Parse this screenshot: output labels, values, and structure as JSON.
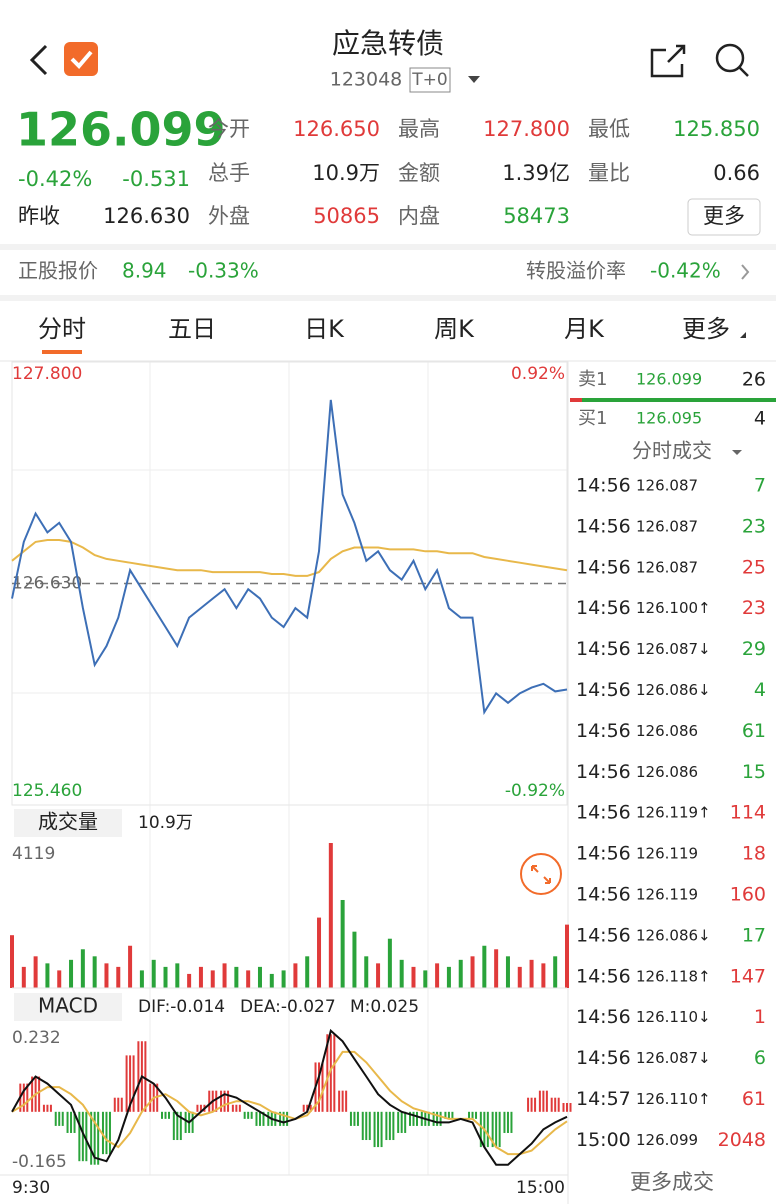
{
  "header": {
    "title": "应急转债",
    "code": "123048",
    "badge": "T+0"
  },
  "quote": {
    "price": "126.099",
    "change_pct": "-0.42%",
    "change": "-0.531",
    "prev_close_label": "昨收",
    "prev_close": "126.630",
    "fields": [
      {
        "label": "今开",
        "value": "126.650",
        "color": "red"
      },
      {
        "label": "最高",
        "value": "127.800",
        "color": "red"
      },
      {
        "label": "最低",
        "value": "125.850",
        "color": "green"
      },
      {
        "label": "总手",
        "value": "10.9万",
        "color": "black"
      },
      {
        "label": "金额",
        "value": "1.39亿",
        "color": "black"
      },
      {
        "label": "量比",
        "value": "0.66",
        "color": "black"
      },
      {
        "label": "外盘",
        "value": "50865",
        "color": "red"
      },
      {
        "label": "内盘",
        "value": "58473",
        "color": "green"
      }
    ],
    "more_button": "更多"
  },
  "stock_row": {
    "label": "正股报价",
    "price": "8.94",
    "change": "-0.33%",
    "premium_label": "转股溢价率",
    "premium": "-0.42%"
  },
  "tabs": [
    "分时",
    "五日",
    "日K",
    "周K",
    "月K",
    "更多"
  ],
  "intraday": {
    "ylim": [
      125.46,
      127.8
    ],
    "yticks": [
      {
        "value": 127.8,
        "label": "127.800"
      },
      {
        "value": 126.63,
        "label": "126.630"
      },
      {
        "value": 125.46,
        "label": "125.460"
      }
    ],
    "y2lim": [
      -0.92,
      0.92
    ],
    "y2ticks": [
      {
        "value": 0.92,
        "label": "0.92%"
      },
      {
        "value": -0.92,
        "label": "-0.92%"
      }
    ],
    "price": [
      126.55,
      126.85,
      127.0,
      126.9,
      126.95,
      126.85,
      126.5,
      126.2,
      126.3,
      126.45,
      126.7,
      126.6,
      126.5,
      126.4,
      126.3,
      126.45,
      126.5,
      126.55,
      126.6,
      126.5,
      126.6,
      126.55,
      126.45,
      126.4,
      126.5,
      126.45,
      126.8,
      127.6,
      127.1,
      126.95,
      126.75,
      126.8,
      126.7,
      126.65,
      126.75,
      126.6,
      126.7,
      126.5,
      126.45,
      126.45,
      125.95,
      126.05,
      126.0,
      126.05,
      126.08,
      126.1,
      126.06,
      126.07
    ],
    "avg": [
      126.75,
      126.8,
      126.85,
      126.86,
      126.86,
      126.85,
      126.82,
      126.78,
      126.76,
      126.75,
      126.74,
      126.73,
      126.72,
      126.71,
      126.7,
      126.7,
      126.7,
      126.69,
      126.69,
      126.69,
      126.69,
      126.69,
      126.68,
      126.68,
      126.67,
      126.67,
      126.69,
      126.76,
      126.8,
      126.82,
      126.82,
      126.82,
      126.81,
      126.81,
      126.81,
      126.8,
      126.8,
      126.79,
      126.79,
      126.79,
      126.77,
      126.76,
      126.75,
      126.74,
      126.73,
      126.72,
      126.71,
      126.7
    ]
  },
  "volume": {
    "label": "成交量",
    "total": "10.9万",
    "ylim": [
      0,
      4119
    ],
    "yticks": [
      4119
    ],
    "values": [
      1500,
      600,
      900,
      700,
      500,
      800,
      1100,
      900,
      700,
      600,
      1200,
      500,
      800,
      600,
      700,
      400,
      600,
      500,
      700,
      600,
      500,
      600,
      400,
      500,
      700,
      900,
      2000,
      4119,
      2500,
      1600,
      900,
      700,
      1400,
      800,
      600,
      500,
      700,
      600,
      800,
      900,
      1200,
      1100,
      900,
      600,
      800,
      700,
      900,
      1800
    ]
  },
  "macd": {
    "label": "MACD",
    "dif_label": "DIF:-0.014",
    "dea_label": "DEA:-0.027",
    "m_label": "M:0.025",
    "ylim": [
      -0.165,
      0.232
    ],
    "yticks": [
      0.232,
      -0.165
    ],
    "dif": [
      0.0,
      0.06,
      0.1,
      0.08,
      0.05,
      0.02,
      -0.06,
      -0.13,
      -0.14,
      -0.08,
      0.02,
      0.1,
      0.08,
      0.04,
      -0.01,
      -0.03,
      0.0,
      0.03,
      0.05,
      0.04,
      0.02,
      0.0,
      -0.02,
      -0.03,
      -0.02,
      0.0,
      0.1,
      0.23,
      0.2,
      0.15,
      0.1,
      0.05,
      0.02,
      0.0,
      -0.01,
      -0.02,
      -0.03,
      -0.03,
      -0.02,
      -0.03,
      -0.1,
      -0.15,
      -0.15,
      -0.12,
      -0.09,
      -0.05,
      -0.03,
      -0.014
    ],
    "dea": [
      0.0,
      0.02,
      0.05,
      0.07,
      0.07,
      0.05,
      0.02,
      -0.03,
      -0.08,
      -0.1,
      -0.06,
      0.0,
      0.04,
      0.05,
      0.03,
      0.0,
      -0.01,
      0.0,
      0.02,
      0.03,
      0.03,
      0.02,
      0.0,
      -0.01,
      -0.02,
      -0.01,
      0.03,
      0.12,
      0.17,
      0.17,
      0.14,
      0.1,
      0.06,
      0.03,
      0.01,
      0.0,
      -0.01,
      -0.02,
      -0.02,
      -0.02,
      -0.05,
      -0.1,
      -0.12,
      -0.12,
      -0.11,
      -0.08,
      -0.05,
      -0.027
    ],
    "m": [
      0,
      0.08,
      0.1,
      0.02,
      -0.04,
      -0.06,
      -0.14,
      -0.15,
      -0.12,
      0.04,
      0.16,
      0.2,
      0.08,
      -0.02,
      -0.08,
      -0.06,
      0.02,
      0.06,
      0.06,
      0.02,
      -0.02,
      -0.04,
      -0.04,
      -0.04,
      0.0,
      0.02,
      0.14,
      0.22,
      0.06,
      -0.04,
      -0.08,
      -0.1,
      -0.08,
      -0.06,
      -0.04,
      -0.04,
      -0.04,
      -0.02,
      0.0,
      -0.02,
      -0.1,
      -0.1,
      -0.06,
      0.0,
      0.04,
      0.06,
      0.04,
      0.025
    ]
  },
  "time_labels": [
    "9:30",
    "15:00"
  ],
  "order_book": [
    {
      "label": "卖1",
      "price": "126.099",
      "qty": "26"
    },
    {
      "label": "买1",
      "price": "126.095",
      "qty": "4"
    }
  ],
  "trades": {
    "title": "分时成交",
    "more": "更多成交",
    "rows": [
      {
        "time": "14:56",
        "price": "126.087",
        "qty": "7",
        "color": "green"
      },
      {
        "time": "14:56",
        "price": "126.087",
        "qty": "23",
        "color": "green"
      },
      {
        "time": "14:56",
        "price": "126.087",
        "qty": "25",
        "color": "red"
      },
      {
        "time": "14:56",
        "price": "126.100↑",
        "qty": "23",
        "color": "red"
      },
      {
        "time": "14:56",
        "price": "126.087↓",
        "qty": "29",
        "color": "green"
      },
      {
        "time": "14:56",
        "price": "126.086↓",
        "qty": "4",
        "color": "green"
      },
      {
        "time": "14:56",
        "price": "126.086",
        "qty": "61",
        "color": "green"
      },
      {
        "time": "14:56",
        "price": "126.086",
        "qty": "15",
        "color": "green"
      },
      {
        "time": "14:56",
        "price": "126.119↑",
        "qty": "114",
        "color": "red"
      },
      {
        "time": "14:56",
        "price": "126.119",
        "qty": "18",
        "color": "red"
      },
      {
        "time": "14:56",
        "price": "126.119",
        "qty": "160",
        "color": "red"
      },
      {
        "time": "14:56",
        "price": "126.086↓",
        "qty": "17",
        "color": "green"
      },
      {
        "time": "14:56",
        "price": "126.118↑",
        "qty": "147",
        "color": "red"
      },
      {
        "time": "14:56",
        "price": "126.110↓",
        "qty": "1",
        "color": "red"
      },
      {
        "time": "14:56",
        "price": "126.087↓",
        "qty": "6",
        "color": "green"
      },
      {
        "time": "14:57",
        "price": "126.110↑",
        "qty": "61",
        "color": "red"
      },
      {
        "time": "15:00",
        "price": "126.099",
        "qty": "2048",
        "color": "red"
      }
    ]
  }
}
